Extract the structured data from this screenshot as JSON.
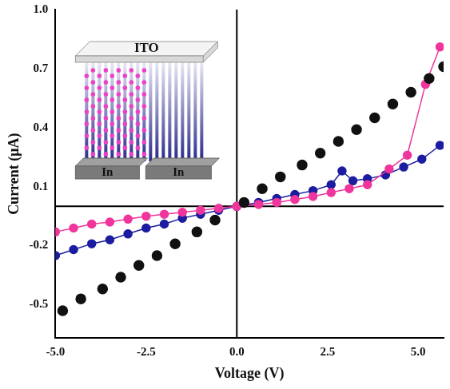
{
  "chart_data": {
    "type": "scatter",
    "x_label": "Voltage (V)",
    "y_label": "Current (μA)",
    "xlim": [
      -5,
      5.7
    ],
    "ylim": [
      -0.67,
      1.0
    ],
    "xticks": [
      {
        "value": -5,
        "label": "-5.0"
      },
      {
        "value": -2.5,
        "label": "-2.5"
      },
      {
        "value": 0,
        "label": "0.0"
      },
      {
        "value": 2.5,
        "label": "2.5"
      },
      {
        "value": 5,
        "label": "5.0"
      }
    ],
    "yticks": [
      -0.5,
      -0.2,
      0.1,
      0.4,
      0.7,
      {
        "value": 1.0,
        "label": "1.0"
      }
    ],
    "grid": false,
    "annotations": [
      {
        "text": "ITO"
      },
      {
        "text": "In"
      },
      {
        "text": "In"
      }
    ],
    "series": [
      {
        "color": "#111111",
        "marker": "circle",
        "line_style": "none",
        "x": [
          -4.8,
          -4.3,
          -3.7,
          -3.2,
          -2.7,
          -2.2,
          -1.7,
          -1.1,
          -0.6,
          0.2,
          0.7,
          1.2,
          1.8,
          2.3,
          2.8,
          3.3,
          3.8,
          4.3,
          4.8,
          5.3,
          5.7
        ],
        "values": [
          -0.53,
          -0.47,
          -0.42,
          -0.36,
          -0.3,
          -0.25,
          -0.19,
          -0.13,
          -0.07,
          0.02,
          0.09,
          0.15,
          0.21,
          0.27,
          0.33,
          0.39,
          0.45,
          0.52,
          0.58,
          0.65,
          0.71
        ]
      },
      {
        "color": "#f0359c",
        "marker": "circle",
        "line_style": "solid",
        "x": [
          -5,
          -4.5,
          -4,
          -3.5,
          -3,
          -2.5,
          -2,
          -1.5,
          -1,
          -0.5,
          0,
          0.6,
          1.1,
          1.6,
          2.1,
          2.6,
          3.1,
          3.6,
          4.2,
          4.7,
          5.2,
          5.6
        ],
        "values": [
          -0.13,
          -0.11,
          -0.09,
          -0.08,
          -0.065,
          -0.05,
          -0.04,
          -0.03,
          -0.02,
          -0.01,
          0.0,
          0.01,
          0.02,
          0.035,
          0.05,
          0.07,
          0.09,
          0.11,
          0.19,
          0.26,
          0.62,
          0.81
        ]
      },
      {
        "color": "#1c1ca0",
        "marker": "circle",
        "line_style": "solid",
        "x": [
          -5,
          -4.5,
          -4,
          -3.5,
          -3,
          -2.5,
          -2,
          -1.5,
          -1,
          -0.5,
          0,
          0.6,
          1.1,
          1.6,
          2.1,
          2.6,
          2.9,
          3.2,
          3.6,
          4.1,
          4.6,
          5.1,
          5.6
        ],
        "values": [
          -0.25,
          -0.22,
          -0.19,
          -0.17,
          -0.14,
          -0.11,
          -0.09,
          -0.06,
          -0.04,
          -0.02,
          0.0,
          0.02,
          0.04,
          0.06,
          0.08,
          0.11,
          0.18,
          0.13,
          0.14,
          0.16,
          0.2,
          0.24,
          0.31
        ]
      }
    ]
  }
}
